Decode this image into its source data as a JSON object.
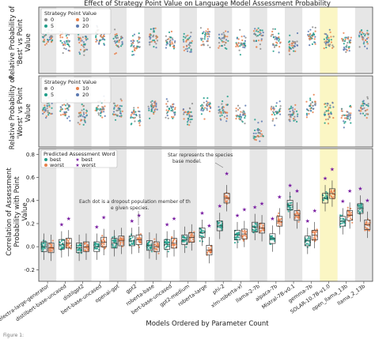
{
  "figure": {
    "title": "Effect of Strategy Point Value on Language Model Assessment Probability",
    "xlabel": "Models Ordered by Parameter Count",
    "caption_fragment": "Figure 1:"
  },
  "chart_data": [
    {
      "type": "scatter",
      "ylabel": "Relative Probability of 'Best' vs Point Value",
      "legend": {
        "title": "Strategy Point Value",
        "placement": "top-left",
        "entries": [
          {
            "label": "0",
            "color": "#8c8c8c"
          },
          {
            "label": "5",
            "color": "#1f9e89"
          },
          {
            "label": "10",
            "color": "#e8804b"
          },
          {
            "label": "20",
            "color": "#5a78b0"
          }
        ]
      },
      "grid": false
    },
    {
      "type": "scatter",
      "ylabel": "Relative Probability of 'Worst' vs Point Value",
      "legend": {
        "title": "Strategy Point Value",
        "placement": "top-left",
        "entries": [
          {
            "label": "0",
            "color": "#8c8c8c"
          },
          {
            "label": "5",
            "color": "#1f9e89"
          },
          {
            "label": "10",
            "color": "#e8804b"
          },
          {
            "label": "20",
            "color": "#5a78b0"
          }
        ]
      },
      "grid": false
    },
    {
      "type": "box+strip",
      "ylabel": "Correlation of Assessment Probability with Point Value",
      "ylim": [
        -0.3,
        0.85
      ],
      "yticks": [
        "0.8",
        "0.6",
        "0.4",
        "0.2",
        "0.0",
        "-0.2"
      ],
      "categories": [
        "electra-large-generator",
        "distilbert-base-uncased",
        "distilgpt2",
        "bert-base-uncased",
        "openai-gpt",
        "gpt2",
        "roberta-base",
        "bert-base-uncased",
        "gpt2-medium",
        "roberta-large",
        "phi-2",
        "xlm-roberta-xl",
        "llama-2-7b",
        "alpaca-7b",
        "Mistral-7B-v0.1",
        "gemma-7b",
        "SOLAR-10.7B-v1.0",
        "open_llama_13b",
        "llama_2_13b"
      ],
      "highlight_category": "SOLAR-10.7B-v1.0",
      "series": [
        {
          "name": "best",
          "marker": "dot",
          "color": "#1f9e89",
          "values": [
            0.0,
            0.02,
            -0.01,
            0.0,
            0.03,
            0.05,
            0.01,
            0.02,
            0.06,
            0.12,
            0.18,
            0.1,
            0.17,
            0.07,
            0.36,
            0.05,
            0.42,
            0.22,
            0.33
          ]
        },
        {
          "name": "worst",
          "marker": "dot",
          "color": "#e8804b",
          "values": [
            -0.01,
            0.03,
            0.0,
            0.04,
            0.05,
            0.06,
            0.0,
            0.03,
            0.08,
            -0.03,
            0.42,
            0.11,
            0.16,
            0.22,
            0.27,
            0.1,
            0.46,
            0.27,
            0.19
          ]
        }
      ],
      "species_markers": [
        {
          "name": "best",
          "marker": "star",
          "color": "#7a1fa2"
        },
        {
          "name": "worst",
          "marker": "star",
          "color": "#7a1fa2"
        }
      ],
      "legend": {
        "title": "Predicted Assessment Word",
        "placement": "top-left",
        "entries": [
          "best",
          "worst",
          "best",
          "worst"
        ]
      },
      "annotations": [
        "Star represents the species base model.",
        "Each dot is a dropout population member of the given species."
      ]
    }
  ]
}
